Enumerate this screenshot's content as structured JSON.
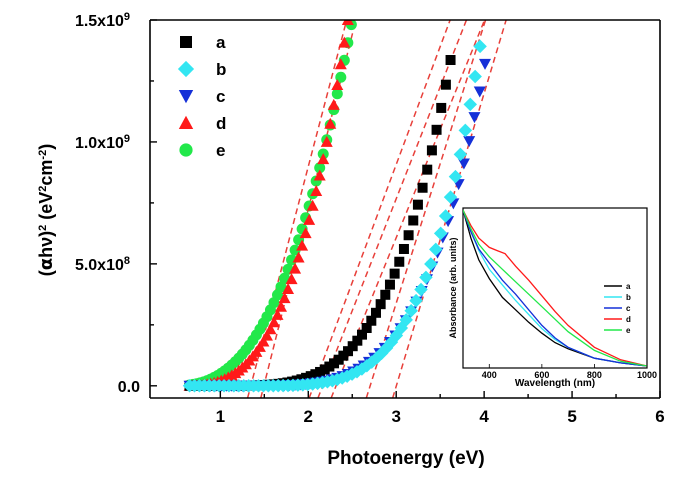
{
  "chart_data": {
    "type": "scatter",
    "xlabel": "Photoenergy (eV)",
    "ylabel_parts": {
      "alpha": "α",
      "rest": "hν)",
      "sup2": "2",
      "unit_open": " (eV",
      "unit_cm": "cm",
      "unit_exp": "-2",
      "unit_close": ")"
    },
    "xlim": [
      0.2,
      6.0
    ],
    "ylim": [
      -0.05,
      1.5
    ],
    "x_ticks": [
      1,
      2,
      3,
      4,
      5,
      6
    ],
    "x_tick_labels": [
      "1",
      "2",
      "3",
      "4",
      "5",
      "6"
    ],
    "y_ticks": [
      0.0,
      0.5,
      1.0,
      1.5
    ],
    "y_tick_labels": [
      {
        "main": "0.0",
        "exp": ""
      },
      {
        "main": "5.0x10",
        "exp": "8"
      },
      {
        "main": "1.0x10",
        "exp": "9"
      },
      {
        "main": "1.5x10",
        "exp": "9"
      }
    ],
    "legend_position": "top-left",
    "series": [
      {
        "name": "a",
        "marker": "square",
        "color": "#000000",
        "x0": 0.65,
        "x1": 3.63,
        "step": 0.053,
        "onset": 0.3,
        "k": 2.2,
        "cap": 1.39
      },
      {
        "name": "b",
        "marker": "diamond",
        "color": "#33e6f2",
        "x0": 0.65,
        "x1": 3.97,
        "step": 0.056,
        "onset": 0.55,
        "k": 3.3,
        "cap": 1.49
      },
      {
        "name": "c",
        "marker": "triangle-down",
        "color": "#1530d8",
        "x0": 0.65,
        "x1": 4.02,
        "step": 0.06,
        "onset": 0.6,
        "k": 3.2,
        "cap": 1.39
      },
      {
        "name": "d",
        "marker": "triangle-up",
        "color": "#ff1a1a",
        "x0": 0.65,
        "x1": 2.45,
        "step": 0.04,
        "onset": 0.25,
        "k": 2.0,
        "cap": 1.5
      },
      {
        "name": "e",
        "marker": "circle",
        "color": "#22e84a",
        "x0": 0.65,
        "x1": 2.5,
        "step": 0.04,
        "onset": -0.1,
        "k": 1.6,
        "cap": 1.5
      }
    ],
    "fit_lines": [
      {
        "series": "d",
        "x_intercept": 1.35,
        "slope": 1.38
      },
      {
        "series": "e",
        "x_intercept": 1.5,
        "slope": 1.44
      },
      {
        "series": "a",
        "x_intercept": 2.05,
        "slope": 0.96
      },
      {
        "series": "b",
        "x_intercept": 2.15,
        "slope": 0.91
      },
      {
        "series": "c",
        "x_intercept": 2.3,
        "slope": 0.88
      },
      {
        "series": "extra-1",
        "x_intercept": 2.7,
        "slope": 1.14
      },
      {
        "series": "extra-2",
        "x_intercept": 3.0,
        "slope": 1.2
      }
    ],
    "fit_line_color": "#e8403a",
    "inset": {
      "type": "line",
      "xlabel": "Wavelength (nm)",
      "ylabel": "Absorbance (arb. units)",
      "xlim": [
        300,
        1000
      ],
      "x_ticks": [
        400,
        600,
        800,
        1000
      ],
      "x_tick_labels": [
        "400",
        "600",
        "800",
        "1000"
      ],
      "legend_position": "right",
      "series": [
        {
          "name": "a",
          "color": "#000000",
          "points": [
            [
              300,
              1.0
            ],
            [
              330,
              0.82
            ],
            [
              360,
              0.68
            ],
            [
              400,
              0.56
            ],
            [
              450,
              0.44
            ],
            [
              500,
              0.36
            ],
            [
              550,
              0.28
            ],
            [
              600,
              0.21
            ],
            [
              650,
              0.15
            ],
            [
              700,
              0.11
            ],
            [
              800,
              0.05
            ],
            [
              900,
              0.02
            ],
            [
              1000,
              0.0
            ]
          ]
        },
        {
          "name": "b",
          "color": "#33e6f2",
          "points": [
            [
              300,
              1.0
            ],
            [
              330,
              0.86
            ],
            [
              360,
              0.74
            ],
            [
              400,
              0.62
            ],
            [
              450,
              0.52
            ],
            [
              500,
              0.42
            ],
            [
              550,
              0.33
            ],
            [
              600,
              0.24
            ],
            [
              650,
              0.17
            ],
            [
              700,
              0.12
            ],
            [
              800,
              0.05
            ],
            [
              900,
              0.02
            ],
            [
              1000,
              0.0
            ]
          ]
        },
        {
          "name": "c",
          "color": "#1530d8",
          "points": [
            [
              300,
              1.0
            ],
            [
              330,
              0.86
            ],
            [
              360,
              0.75
            ],
            [
              400,
              0.66
            ],
            [
              450,
              0.55
            ],
            [
              500,
              0.46
            ],
            [
              550,
              0.36
            ],
            [
              600,
              0.26
            ],
            [
              650,
              0.18
            ],
            [
              700,
              0.12
            ],
            [
              800,
              0.05
            ],
            [
              900,
              0.02
            ],
            [
              1000,
              0.0
            ]
          ]
        },
        {
          "name": "d",
          "color": "#ff1a1a",
          "points": [
            [
              300,
              1.0
            ],
            [
              330,
              0.9
            ],
            [
              360,
              0.82
            ],
            [
              400,
              0.76
            ],
            [
              430,
              0.74
            ],
            [
              460,
              0.72
            ],
            [
              500,
              0.64
            ],
            [
              550,
              0.55
            ],
            [
              600,
              0.45
            ],
            [
              650,
              0.35
            ],
            [
              700,
              0.26
            ],
            [
              800,
              0.12
            ],
            [
              900,
              0.04
            ],
            [
              1000,
              0.0
            ]
          ]
        },
        {
          "name": "e",
          "color": "#22e84a",
          "points": [
            [
              300,
              1.0
            ],
            [
              330,
              0.88
            ],
            [
              360,
              0.78
            ],
            [
              400,
              0.7
            ],
            [
              450,
              0.62
            ],
            [
              500,
              0.54
            ],
            [
              550,
              0.46
            ],
            [
              600,
              0.38
            ],
            [
              650,
              0.3
            ],
            [
              700,
              0.22
            ],
            [
              800,
              0.1
            ],
            [
              900,
              0.03
            ],
            [
              1000,
              0.0
            ]
          ]
        }
      ]
    }
  }
}
